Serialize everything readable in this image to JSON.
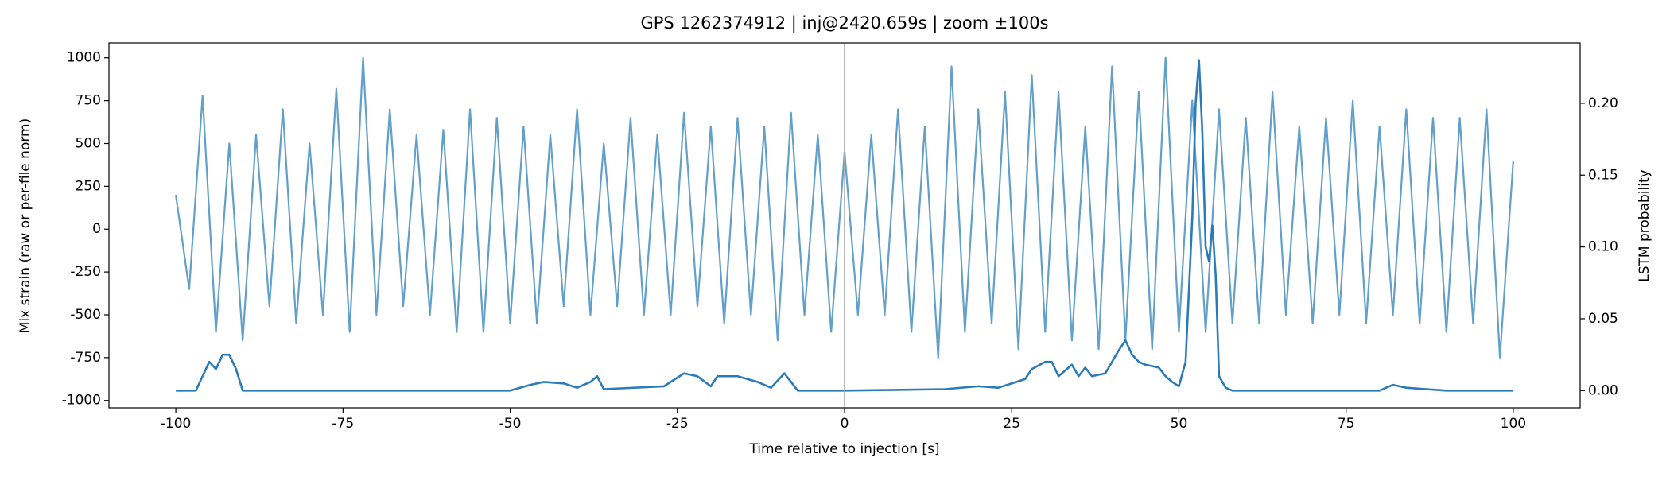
{
  "chart_data": {
    "type": "line",
    "title": "GPS 1262374912 | inj@2420.659s | zoom ±100s",
    "xlabel": "Time relative to injection [s]",
    "ylabel": "Mix strain (raw or per-file norm)",
    "y2label": "LSTM probability",
    "xlim": [
      -110,
      110
    ],
    "xticks": [
      -100,
      -75,
      -50,
      -25,
      0,
      25,
      50,
      75,
      100
    ],
    "ylim": [
      -1043,
      1087
    ],
    "yticks": [
      -1000,
      -750,
      -500,
      -250,
      0,
      250,
      500,
      750,
      1000
    ],
    "y2lim": [
      -0.012,
      0.242
    ],
    "y2ticks": [
      {
        "value": 0,
        "label": "0.00"
      },
      {
        "value": 0.05,
        "label": "0.05"
      },
      {
        "value": 0.1,
        "label": "0.10"
      },
      0.15,
      {
        "value": 0.2,
        "label": "0.20"
      }
    ],
    "vline": {
      "x": 0,
      "color": "#aaaaaa"
    },
    "grid": false,
    "series": [
      {
        "color": "#62a0ca",
        "axis": "y",
        "x": [
          -100,
          -98,
          -96,
          -94,
          -92,
          -90,
          -88,
          -86,
          -84,
          -82,
          -80,
          -78,
          -76,
          -74,
          -72,
          -70,
          -68,
          -66,
          -64,
          -62,
          -60,
          -58,
          -56,
          -54,
          -52,
          -50,
          -48,
          -46,
          -44,
          -42,
          -40,
          -38,
          -36,
          -34,
          -32,
          -30,
          -28,
          -26,
          -24,
          -22,
          -20,
          -18,
          -16,
          -14,
          -12,
          -10,
          -8,
          -6,
          -4,
          -2,
          0,
          2,
          4,
          6,
          8,
          10,
          12,
          14,
          16,
          18,
          20,
          22,
          24,
          26,
          28,
          30,
          32,
          34,
          36,
          38,
          40,
          42,
          44,
          46,
          48,
          50,
          52,
          54,
          56,
          58,
          60,
          62,
          64,
          66,
          68,
          70,
          72,
          74,
          76,
          78,
          80,
          82,
          84,
          86,
          88,
          90,
          92,
          94,
          96,
          98,
          100
        ],
        "values": [
          200,
          -350,
          780,
          -600,
          500,
          -650,
          550,
          -450,
          700,
          -550,
          500,
          -500,
          820,
          -600,
          1000,
          -500,
          700,
          -450,
          550,
          -500,
          580,
          -600,
          700,
          -600,
          650,
          -550,
          600,
          -550,
          550,
          -450,
          700,
          -500,
          500,
          -450,
          650,
          -500,
          550,
          -500,
          680,
          -450,
          600,
          -550,
          650,
          -500,
          600,
          -650,
          680,
          -500,
          550,
          -600,
          450,
          -500,
          550,
          -500,
          700,
          -600,
          600,
          -750,
          950,
          -600,
          700,
          -550,
          800,
          -700,
          900,
          -600,
          800,
          -650,
          600,
          -700,
          950,
          -650,
          800,
          -700,
          1000,
          -600,
          750,
          -600,
          700,
          -550,
          650,
          -550,
          800,
          -500,
          600,
          -550,
          650,
          -500,
          750,
          -550,
          600,
          -500,
          700,
          -550,
          650,
          -600,
          650,
          -550,
          700,
          -750,
          400
        ]
      },
      {
        "color": "#2b7bb9",
        "axis": "y2",
        "x": [
          -100,
          -97,
          -96,
          -95,
          -94,
          -93,
          -92,
          -91,
          -90,
          -50,
          -47,
          -45,
          -42,
          -40,
          -38,
          -37,
          -36,
          -27,
          -24,
          -22,
          -20,
          -19,
          -16,
          -13,
          -11,
          -9,
          -8,
          -7,
          0,
          15,
          20,
          23,
          25,
          27,
          28,
          30,
          31,
          32,
          34,
          35,
          36,
          37,
          39,
          41,
          42,
          43,
          44,
          45,
          47,
          48,
          49,
          50,
          51,
          52,
          52.5,
          53,
          53.5,
          54,
          54.5,
          55,
          55.5,
          56,
          57,
          58,
          80,
          82,
          84,
          90,
          100
        ],
        "values": [
          0,
          0,
          0.01,
          0.02,
          0.015,
          0.025,
          0.025,
          0.015,
          0,
          0,
          0.004,
          0.006,
          0.005,
          0.002,
          0.006,
          0.01,
          0.001,
          0.003,
          0.012,
          0.01,
          0.003,
          0.01,
          0.01,
          0.006,
          0.002,
          0.012,
          0.006,
          0,
          0,
          0.001,
          0.003,
          0.002,
          0.005,
          0.008,
          0.015,
          0.02,
          0.02,
          0.01,
          0.018,
          0.01,
          0.016,
          0.01,
          0.012,
          0.028,
          0.035,
          0.025,
          0.02,
          0.018,
          0.016,
          0.01,
          0.006,
          0.003,
          0.02,
          0.12,
          0.2,
          0.23,
          0.18,
          0.1,
          0.09,
          0.115,
          0.08,
          0.01,
          0.002,
          0,
          0,
          0.004,
          0.002,
          0,
          0
        ]
      }
    ]
  }
}
